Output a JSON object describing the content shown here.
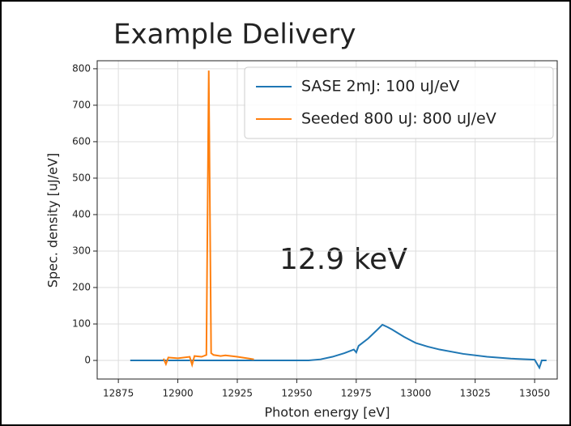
{
  "chart_data": {
    "type": "line",
    "title": "Example Delivery",
    "annotation": "12.9 keV",
    "xlabel": "Photon energy [eV]",
    "ylabel": "Spec. density [uJ/eV]",
    "xlim": [
      12866.1,
      13059.5
    ],
    "ylim": [
      -51,
      822
    ],
    "xticks": [
      12875,
      12900,
      12925,
      12950,
      12975,
      13000,
      13025,
      13050
    ],
    "yticks": [
      0,
      100,
      200,
      300,
      400,
      500,
      600,
      700,
      800
    ],
    "grid": true,
    "legend": "upper right",
    "series": [
      {
        "name": "SASE 2mJ: 100 uJ/eV",
        "color": "#1f77b4",
        "x": [
          12880,
          12900,
          12920,
          12940,
          12955,
          12960,
          12965,
          12970,
          12974,
          12975,
          12976,
          12980,
          12984,
          12986,
          12988,
          12990,
          12995,
          13000,
          13005,
          13010,
          13020,
          13030,
          13040,
          13050,
          13052,
          13053,
          13055
        ],
        "values": [
          0,
          0,
          0,
          0,
          0,
          3,
          10,
          20,
          30,
          22,
          40,
          60,
          85,
          98,
          92,
          85,
          65,
          48,
          38,
          30,
          18,
          10,
          5,
          2,
          -20,
          0,
          0
        ]
      },
      {
        "name": "Seeded 800 uJ: 800 uJ/eV",
        "color": "#ff7f0e",
        "x": [
          12894,
          12895,
          12896,
          12900,
          12905,
          12906,
          12907,
          12910,
          12912,
          12913,
          12914,
          12915,
          12918,
          12920,
          12925,
          12930,
          12932
        ],
        "values": [
          5,
          -10,
          8,
          6,
          10,
          -12,
          12,
          10,
          15,
          795,
          20,
          15,
          12,
          14,
          10,
          5,
          3
        ]
      }
    ]
  }
}
